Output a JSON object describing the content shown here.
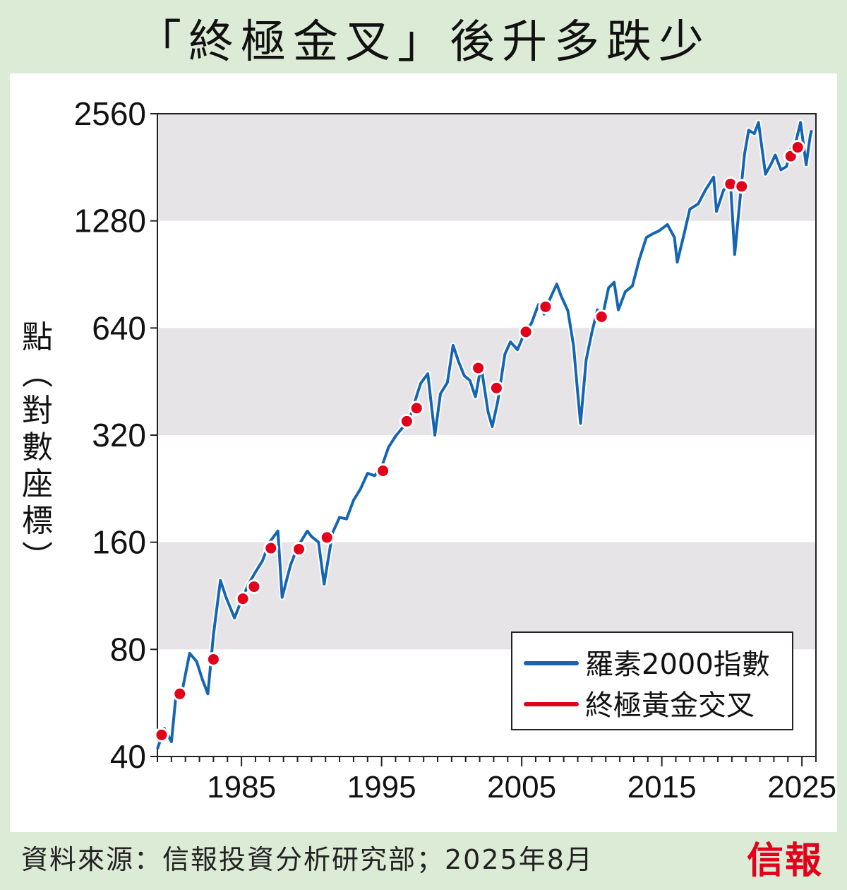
{
  "header": {
    "title": "「終極金叉」後升多跌少"
  },
  "footer": {
    "source": "資料來源：信報投資分析研究部；2025年8月",
    "logo": "信報"
  },
  "colors": {
    "background": "#dcebd6",
    "band": "#e6e4e6",
    "line": "#1565b2",
    "marker": "#e2001a"
  },
  "chart_data": {
    "type": "line",
    "title": "「終極金叉」後升多跌少",
    "ylabel": "點（對數座標）",
    "ylabel_chars": [
      "點",
      "︵",
      "對",
      "數",
      "座",
      "標",
      "︶"
    ],
    "y_scale": "log2",
    "ylim": [
      40,
      2560
    ],
    "y_ticks": [
      40,
      80,
      160,
      320,
      640,
      1280,
      2560
    ],
    "xlim": [
      1979,
      2026
    ],
    "x_ticks": [
      1985,
      1995,
      2005,
      2015,
      2025
    ],
    "legend_position": "bottom-right",
    "grid": "alternating horizontal bands",
    "series": [
      {
        "name": "羅素2000指數",
        "color": "#1565b2",
        "points": [
          [
            1979.0,
            42
          ],
          [
            1979.5,
            48
          ],
          [
            1980.0,
            44
          ],
          [
            1980.3,
            58
          ],
          [
            1980.8,
            62
          ],
          [
            1981.3,
            78
          ],
          [
            1981.8,
            74
          ],
          [
            1982.2,
            66
          ],
          [
            1982.6,
            60
          ],
          [
            1983.0,
            88
          ],
          [
            1983.5,
            125
          ],
          [
            1983.9,
            112
          ],
          [
            1984.5,
            98
          ],
          [
            1985.0,
            110
          ],
          [
            1985.5,
            122
          ],
          [
            1986.0,
            132
          ],
          [
            1986.5,
            142
          ],
          [
            1987.0,
            160
          ],
          [
            1987.6,
            172
          ],
          [
            1987.9,
            112
          ],
          [
            1988.5,
            138
          ],
          [
            1989.0,
            155
          ],
          [
            1989.7,
            172
          ],
          [
            1990.0,
            166
          ],
          [
            1990.5,
            160
          ],
          [
            1990.9,
            122
          ],
          [
            1991.5,
            170
          ],
          [
            1992.0,
            188
          ],
          [
            1992.5,
            186
          ],
          [
            1993.0,
            210
          ],
          [
            1993.5,
            226
          ],
          [
            1994.0,
            250
          ],
          [
            1994.5,
            246
          ],
          [
            1995.0,
            260
          ],
          [
            1995.5,
            296
          ],
          [
            1996.0,
            318
          ],
          [
            1996.5,
            336
          ],
          [
            1997.0,
            356
          ],
          [
            1997.5,
            412
          ],
          [
            1997.8,
            448
          ],
          [
            1998.3,
            476
          ],
          [
            1998.8,
            320
          ],
          [
            1999.2,
            418
          ],
          [
            1999.7,
            450
          ],
          [
            2000.1,
            572
          ],
          [
            2000.5,
            514
          ],
          [
            2000.9,
            470
          ],
          [
            2001.3,
            456
          ],
          [
            2001.7,
            410
          ],
          [
            2002.1,
            500
          ],
          [
            2002.6,
            372
          ],
          [
            2002.9,
            338
          ],
          [
            2003.3,
            400
          ],
          [
            2003.8,
            540
          ],
          [
            2004.2,
            585
          ],
          [
            2004.7,
            556
          ],
          [
            2005.2,
            620
          ],
          [
            2005.7,
            660
          ],
          [
            2006.2,
            745
          ],
          [
            2006.6,
            700
          ],
          [
            2007.0,
            770
          ],
          [
            2007.5,
            850
          ],
          [
            2007.8,
            790
          ],
          [
            2008.3,
            715
          ],
          [
            2008.7,
            570
          ],
          [
            2009.0,
            420
          ],
          [
            2009.2,
            345
          ],
          [
            2009.6,
            520
          ],
          [
            2010.0,
            620
          ],
          [
            2010.4,
            720
          ],
          [
            2010.7,
            670
          ],
          [
            2011.2,
            830
          ],
          [
            2011.6,
            860
          ],
          [
            2011.9,
            720
          ],
          [
            2012.4,
            810
          ],
          [
            2012.9,
            840
          ],
          [
            2013.4,
            1000
          ],
          [
            2013.9,
            1150
          ],
          [
            2014.4,
            1180
          ],
          [
            2014.8,
            1200
          ],
          [
            2015.4,
            1250
          ],
          [
            2015.9,
            1150
          ],
          [
            2016.1,
            980
          ],
          [
            2016.6,
            1180
          ],
          [
            2017.0,
            1380
          ],
          [
            2017.6,
            1430
          ],
          [
            2018.1,
            1560
          ],
          [
            2018.7,
            1700
          ],
          [
            2018.9,
            1360
          ],
          [
            2019.4,
            1560
          ],
          [
            2019.9,
            1640
          ],
          [
            2020.2,
            1030
          ],
          [
            2020.6,
            1500
          ],
          [
            2020.9,
            1970
          ],
          [
            2021.2,
            2300
          ],
          [
            2021.6,
            2250
          ],
          [
            2021.9,
            2420
          ],
          [
            2022.4,
            1730
          ],
          [
            2022.8,
            1850
          ],
          [
            2023.1,
            1960
          ],
          [
            2023.5,
            1780
          ],
          [
            2023.9,
            1820
          ],
          [
            2024.2,
            2040
          ],
          [
            2024.5,
            2080
          ],
          [
            2024.9,
            2420
          ],
          [
            2025.3,
            1840
          ],
          [
            2025.6,
            2230
          ],
          [
            2025.7,
            2300
          ]
        ]
      },
      {
        "name": "終極黃金交叉",
        "color": "#e2001a",
        "points": [
          [
            1979.3,
            46
          ],
          [
            1980.6,
            60
          ],
          [
            1983.0,
            75
          ],
          [
            1985.1,
            111
          ],
          [
            1985.9,
            120
          ],
          [
            1987.1,
            154
          ],
          [
            1989.1,
            153
          ],
          [
            1991.1,
            165
          ],
          [
            1995.1,
            254
          ],
          [
            1996.8,
            350
          ],
          [
            1997.5,
            381
          ],
          [
            2001.9,
            494
          ],
          [
            2003.2,
            434
          ],
          [
            2005.3,
            624
          ],
          [
            2006.7,
            734
          ],
          [
            2010.7,
            688
          ],
          [
            2019.9,
            1625
          ],
          [
            2020.7,
            1600
          ],
          [
            2024.2,
            1945
          ],
          [
            2024.7,
            2060
          ]
        ]
      }
    ]
  }
}
